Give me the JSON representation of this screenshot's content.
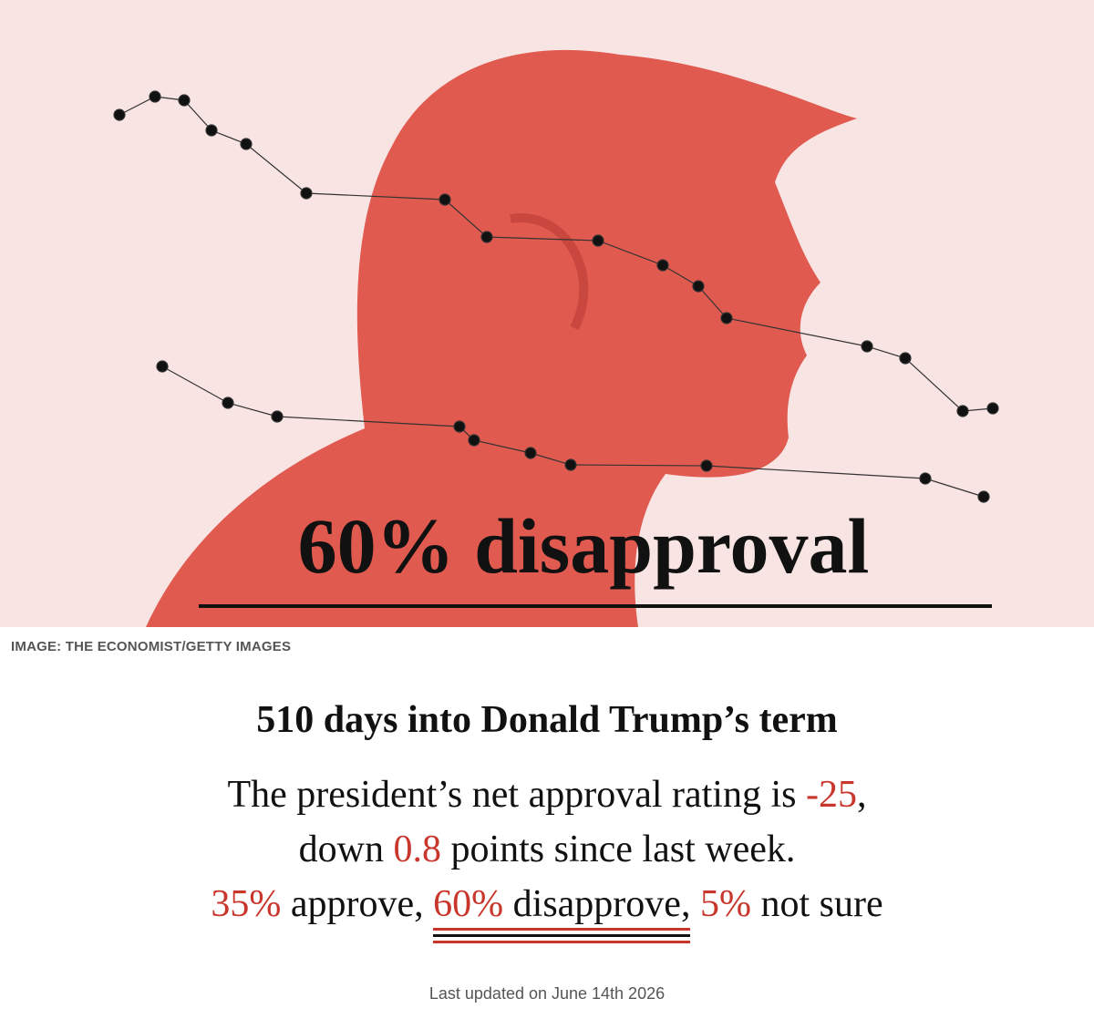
{
  "image": {
    "overlay_text": "60% disapproval",
    "credit": "IMAGE: THE ECONOMIST/GETTY IMAGES"
  },
  "article": {
    "title": "510 days into Donald Trump’s term",
    "lines": [
      [
        {
          "text": "The president’s net approval rating is "
        },
        {
          "text": "-25",
          "highlight": true
        },
        {
          "text": ","
        }
      ],
      [
        {
          "text": "down "
        },
        {
          "text": "0.8",
          "highlight": true
        },
        {
          "text": " points since last week."
        }
      ],
      [
        {
          "text": "35%",
          "highlight": true
        },
        {
          "text": " approve, "
        },
        {
          "text": "60%",
          "highlight": true,
          "underlined": true
        },
        {
          "text": " disapprove,",
          "underlined": true
        },
        {
          "text": " "
        },
        {
          "text": "5%",
          "highlight": true
        },
        {
          "text": " not sure"
        }
      ]
    ],
    "updated": "Last updated on June 14th 2026"
  }
}
